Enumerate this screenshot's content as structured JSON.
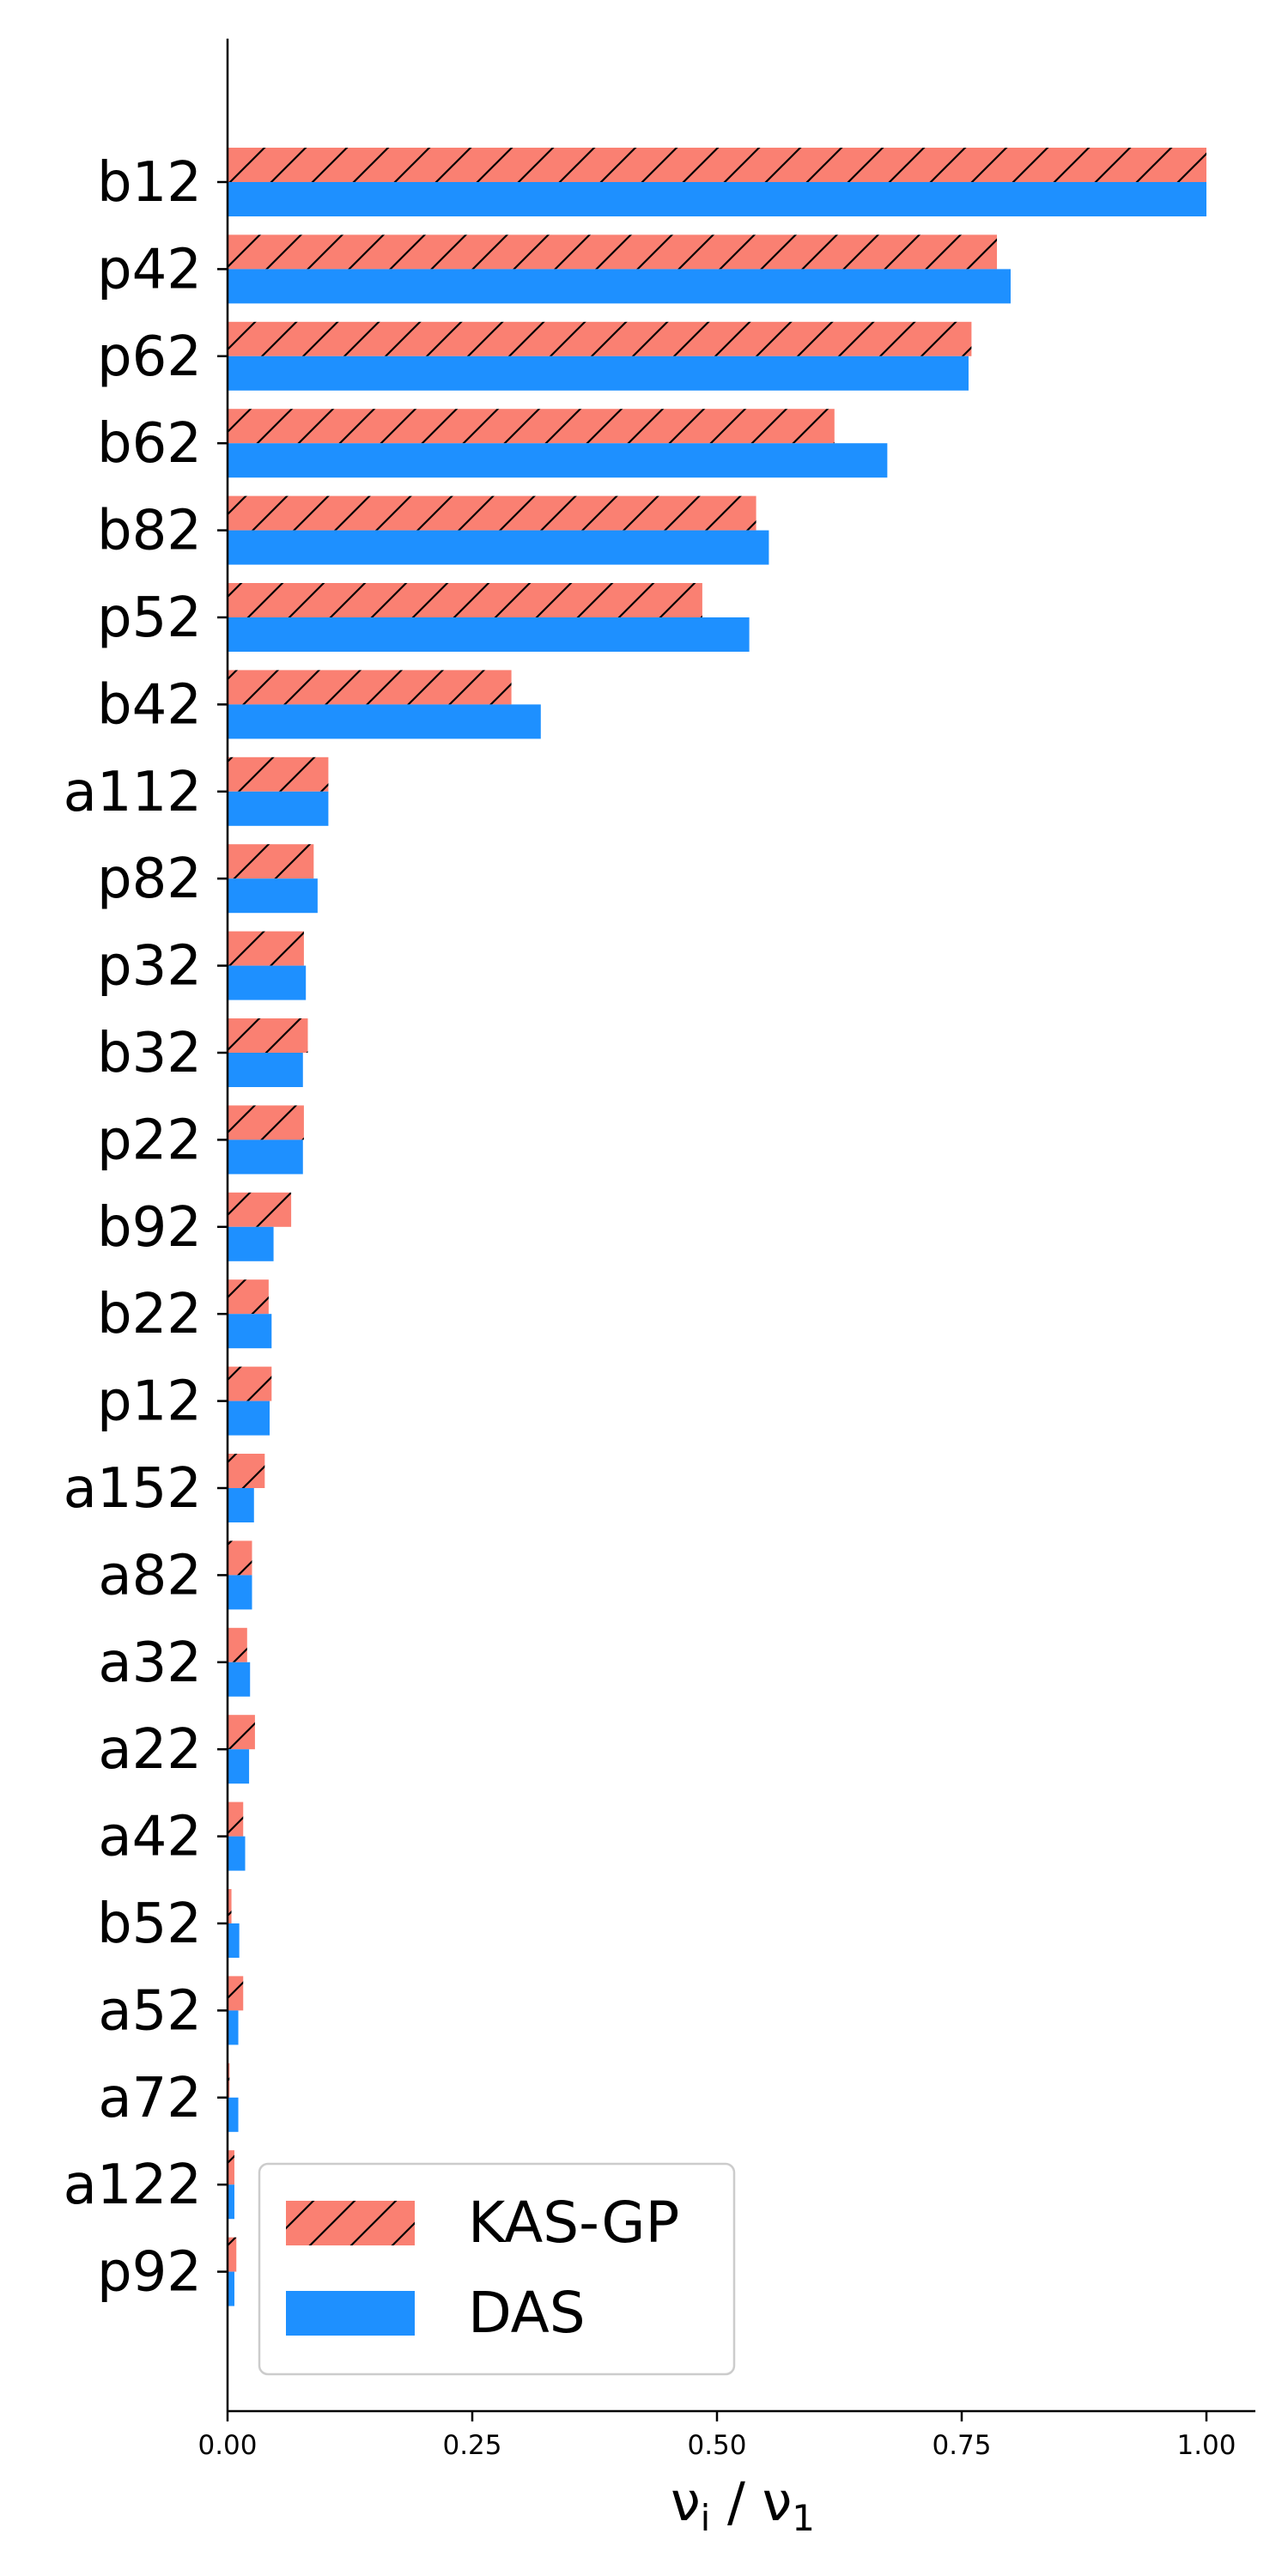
{
  "chart_data": {
    "type": "bar",
    "orientation": "horizontal",
    "title": "",
    "xlabel": "ν_i / ν_1",
    "ylabel": "",
    "xlim": [
      0,
      1.05
    ],
    "xticks": [
      "0.00",
      "0.25",
      "0.50",
      "0.75",
      "1.00"
    ],
    "grid": false,
    "legend_position": "bottom-left",
    "categories": [
      "b12",
      "p42",
      "p62",
      "b62",
      "b82",
      "p52",
      "b42",
      "a112",
      "p82",
      "p32",
      "b32",
      "p22",
      "b92",
      "b22",
      "p12",
      "a152",
      "a82",
      "a32",
      "a22",
      "a42",
      "b52",
      "a52",
      "a72",
      "a122",
      "p92"
    ],
    "series": [
      {
        "name": "KAS-GP",
        "color": "#fa8072",
        "hatch": "diagonal",
        "values": [
          1.0,
          0.786,
          0.76,
          0.62,
          0.54,
          0.485,
          0.29,
          0.103,
          0.088,
          0.078,
          0.082,
          0.078,
          0.065,
          0.042,
          0.045,
          0.038,
          0.025,
          0.02,
          0.028,
          0.016,
          0.004,
          0.016,
          0.002,
          0.007,
          0.009
        ]
      },
      {
        "name": "DAS",
        "color": "#1e90ff",
        "values": [
          1.0,
          0.8,
          0.757,
          0.674,
          0.553,
          0.533,
          0.32,
          0.103,
          0.092,
          0.08,
          0.077,
          0.077,
          0.047,
          0.045,
          0.043,
          0.027,
          0.025,
          0.023,
          0.022,
          0.018,
          0.012,
          0.011,
          0.011,
          0.007,
          0.007
        ]
      }
    ]
  }
}
